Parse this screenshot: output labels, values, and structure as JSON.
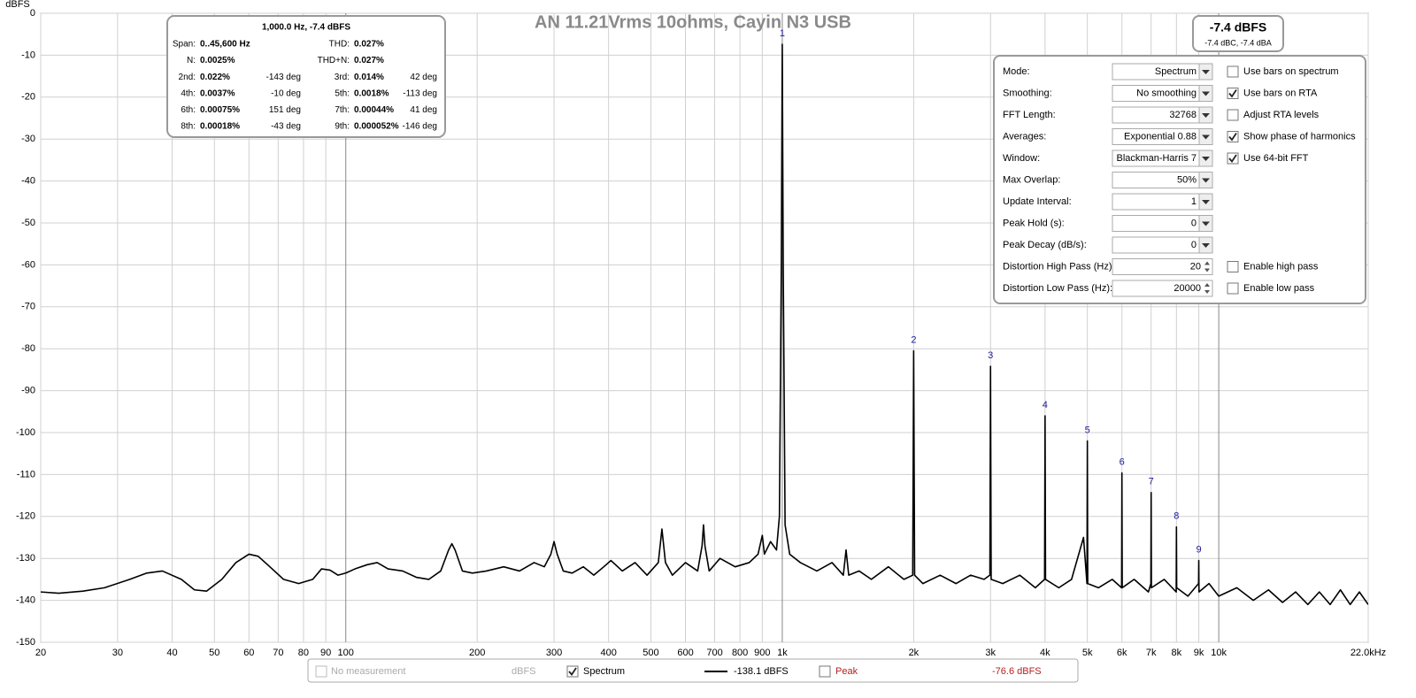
{
  "chart_data": {
    "type": "line",
    "title": "AN 11.21Vrms 10ohms, Cayin N3 USB",
    "y_label": "dBFS",
    "x_scale": "log",
    "grid": true,
    "xlim": [
      20,
      22000
    ],
    "ylim": [
      -150,
      0
    ],
    "xticks": [
      20,
      30,
      40,
      50,
      60,
      70,
      80,
      90,
      100,
      200,
      300,
      400,
      500,
      600,
      700,
      800,
      900,
      {
        "value": 1000,
        "label": "1k"
      },
      {
        "value": 2000,
        "label": "2k"
      },
      {
        "value": 3000,
        "label": "3k"
      },
      {
        "value": 4000,
        "label": "4k"
      },
      {
        "value": 5000,
        "label": "5k"
      },
      {
        "value": 6000,
        "label": "6k"
      },
      {
        "value": 7000,
        "label": "7k"
      },
      {
        "value": 8000,
        "label": "8k"
      },
      {
        "value": 9000,
        "label": "9k"
      },
      {
        "value": 10000,
        "label": "10k"
      },
      {
        "value": 22000,
        "label": "22.0kHz"
      }
    ],
    "yticks": [
      0,
      -10,
      -20,
      -30,
      -40,
      -50,
      -60,
      -70,
      -80,
      -90,
      -100,
      -110,
      -120,
      -130,
      -140,
      -150
    ],
    "x": [
      20,
      22,
      25,
      28,
      32,
      35,
      38,
      42,
      45,
      48,
      52,
      56,
      60,
      63,
      67,
      72,
      78,
      84,
      88,
      92,
      96,
      100,
      105,
      112,
      118,
      125,
      135,
      145,
      155,
      165,
      172,
      175,
      178,
      185,
      195,
      210,
      230,
      250,
      270,
      285,
      295,
      300,
      305,
      315,
      330,
      350,
      370,
      390,
      405,
      430,
      460,
      490,
      520,
      530,
      540,
      560,
      600,
      640,
      655,
      660,
      665,
      680,
      720,
      780,
      840,
      880,
      900,
      910,
      940,
      970,
      985,
      995,
      1000,
      1005,
      1015,
      1040,
      1100,
      1200,
      1300,
      1380,
      1400,
      1420,
      1500,
      1600,
      1750,
      1900,
      1990,
      2000,
      2010,
      2100,
      2300,
      2500,
      2700,
      2900,
      2990,
      3000,
      3010,
      3200,
      3500,
      3800,
      3990,
      4000,
      4010,
      4300,
      4600,
      4900,
      4990,
      5000,
      5010,
      5300,
      5700,
      5990,
      6000,
      6010,
      6400,
      6900,
      6990,
      7000,
      7010,
      7500,
      7990,
      8000,
      8010,
      8500,
      8990,
      9000,
      9010,
      9500,
      10000,
      11000,
      12000,
      13000,
      14000,
      15000,
      16000,
      17000,
      18000,
      19000,
      20000,
      21000,
      22000
    ],
    "series": [
      {
        "name": "Spectrum",
        "color": "#000000",
        "values": [
          -138,
          -138.3,
          -137.8,
          -137,
          -135,
          -133.5,
          -133,
          -135,
          -137.5,
          -137.8,
          -135,
          -131,
          -129,
          -129.5,
          -132,
          -135,
          -136,
          -135,
          -132.5,
          -132.8,
          -134,
          -133.5,
          -132.5,
          -131.5,
          -131,
          -132.5,
          -133,
          -134.5,
          -135,
          -133,
          -128,
          -126.5,
          -128,
          -133,
          -133.5,
          -133,
          -132,
          -133,
          -131,
          -132,
          -129,
          -126,
          -129,
          -133,
          -133.5,
          -132,
          -134,
          -132,
          -130.5,
          -133,
          -131,
          -134,
          -131,
          -123,
          -131,
          -134,
          -131,
          -133,
          -127,
          -122,
          -127,
          -133,
          -130,
          -132,
          -131,
          -129,
          -124.5,
          -129,
          -126,
          -128,
          -120,
          -60,
          -7.4,
          -60,
          -122,
          -129,
          -131,
          -133,
          -131,
          -134,
          -128,
          -134,
          -133,
          -135,
          -132,
          -135,
          -134,
          -80.5,
          -134,
          -136,
          -134,
          -136,
          -134,
          -135,
          -134,
          -84.2,
          -135,
          -136,
          -134,
          -137,
          -135,
          -96,
          -135,
          -137,
          -135,
          -125,
          -136,
          -102,
          -136,
          -137,
          -135,
          -137,
          -109.6,
          -137,
          -135,
          -138,
          -136,
          -114.3,
          -137,
          -135,
          -138,
          -122.5,
          -137,
          -139,
          -136,
          -130.5,
          -138,
          -136,
          -139,
          -137,
          -140,
          -137.5,
          -140.5,
          -138,
          -141,
          -138,
          -141,
          -137.5,
          -141,
          -138,
          -141
        ]
      }
    ],
    "harmonics": {
      "labels": [
        "1",
        "2",
        "3",
        "4",
        "5",
        "6",
        "7",
        "8",
        "9"
      ],
      "x": [
        1000,
        2000,
        3000,
        4000,
        5000,
        6000,
        7000,
        8000,
        9000
      ],
      "values": [
        -7.4,
        -80.5,
        -84.2,
        -96,
        -102,
        -109.6,
        -114.3,
        -122.5,
        -130.5
      ]
    }
  },
  "info_box": {
    "title": "1,000.0 Hz, -7.4 dBFS",
    "rows": [
      {
        "l1": "Span:",
        "v1": "0..45,600 Hz",
        "l2": "THD:",
        "v2": "0.027%"
      },
      {
        "l1": "N:",
        "v1": "0.0025%",
        "l2": "THD+N:",
        "v2": "0.027%"
      },
      {
        "l1": "2nd:",
        "v1": "0.022%",
        "p1": "-143 deg",
        "l2": "3rd:",
        "v2": "0.014%",
        "p2": "42 deg"
      },
      {
        "l1": "4th:",
        "v1": "0.0037%",
        "p1": "-10 deg",
        "l2": "5th:",
        "v2": "0.0018%",
        "p2": "-113 deg"
      },
      {
        "l1": "6th:",
        "v1": "0.00075%",
        "p1": "151 deg",
        "l2": "7th:",
        "v2": "0.00044%",
        "p2": "41 deg"
      },
      {
        "l1": "8th:",
        "v1": "0.00018%",
        "p1": "-43 deg",
        "l2": "9th:",
        "v2": "0.000052%",
        "p2": "-146 deg"
      }
    ]
  },
  "level_box": {
    "main": "-7.4 dBFS",
    "sub": "-7.4 dBC, -7.4 dBA"
  },
  "controls": {
    "rows": [
      {
        "label": "Mode:",
        "value": "Spectrum",
        "control": "dropdown"
      },
      {
        "label": "Smoothing:",
        "value": "No  smoothing",
        "control": "dropdown"
      },
      {
        "label": "FFT Length:",
        "value": "32768",
        "control": "dropdown"
      },
      {
        "label": "Averages:",
        "value": "Exponential 0.88",
        "control": "dropdown"
      },
      {
        "label": "Window:",
        "value": "Blackman-Harris 7",
        "control": "dropdown"
      },
      {
        "label": "Max Overlap:",
        "value": "50%",
        "control": "dropdown"
      },
      {
        "label": "Update Interval:",
        "value": "1",
        "control": "dropdown"
      },
      {
        "label": "Peak Hold (s):",
        "value": "0",
        "control": "dropdown"
      },
      {
        "label": "Peak Decay (dB/s):",
        "value": "0",
        "control": "dropdown"
      },
      {
        "label": "Distortion High Pass (Hz):",
        "value": "20",
        "control": "spin"
      },
      {
        "label": "Distortion Low Pass (Hz):",
        "value": "20000",
        "control": "spin"
      }
    ],
    "options": [
      {
        "label": "Use bars on spectrum",
        "checked": false,
        "row": 0
      },
      {
        "label": "Use bars on RTA",
        "checked": true,
        "row": 1
      },
      {
        "label": "Adjust RTA levels",
        "checked": false,
        "row": 2
      },
      {
        "label": "Show phase of harmonics",
        "checked": true,
        "row": 3
      },
      {
        "label": "Use 64-bit FFT",
        "checked": true,
        "row": 4
      },
      {
        "label": "Enable high pass",
        "checked": false,
        "row": 9
      },
      {
        "label": "Enable low pass",
        "checked": false,
        "row": 10
      }
    ]
  },
  "legend_bar": {
    "no_measurement": {
      "label": "No measurement",
      "unit": "dBFS",
      "checked": false
    },
    "spectrum": {
      "checked": true,
      "readout": "-138.1 dBFS"
    },
    "peak": {
      "label": "Peak",
      "readout": "-76.6 dBFS",
      "checked": false,
      "color": "#b22222"
    }
  }
}
